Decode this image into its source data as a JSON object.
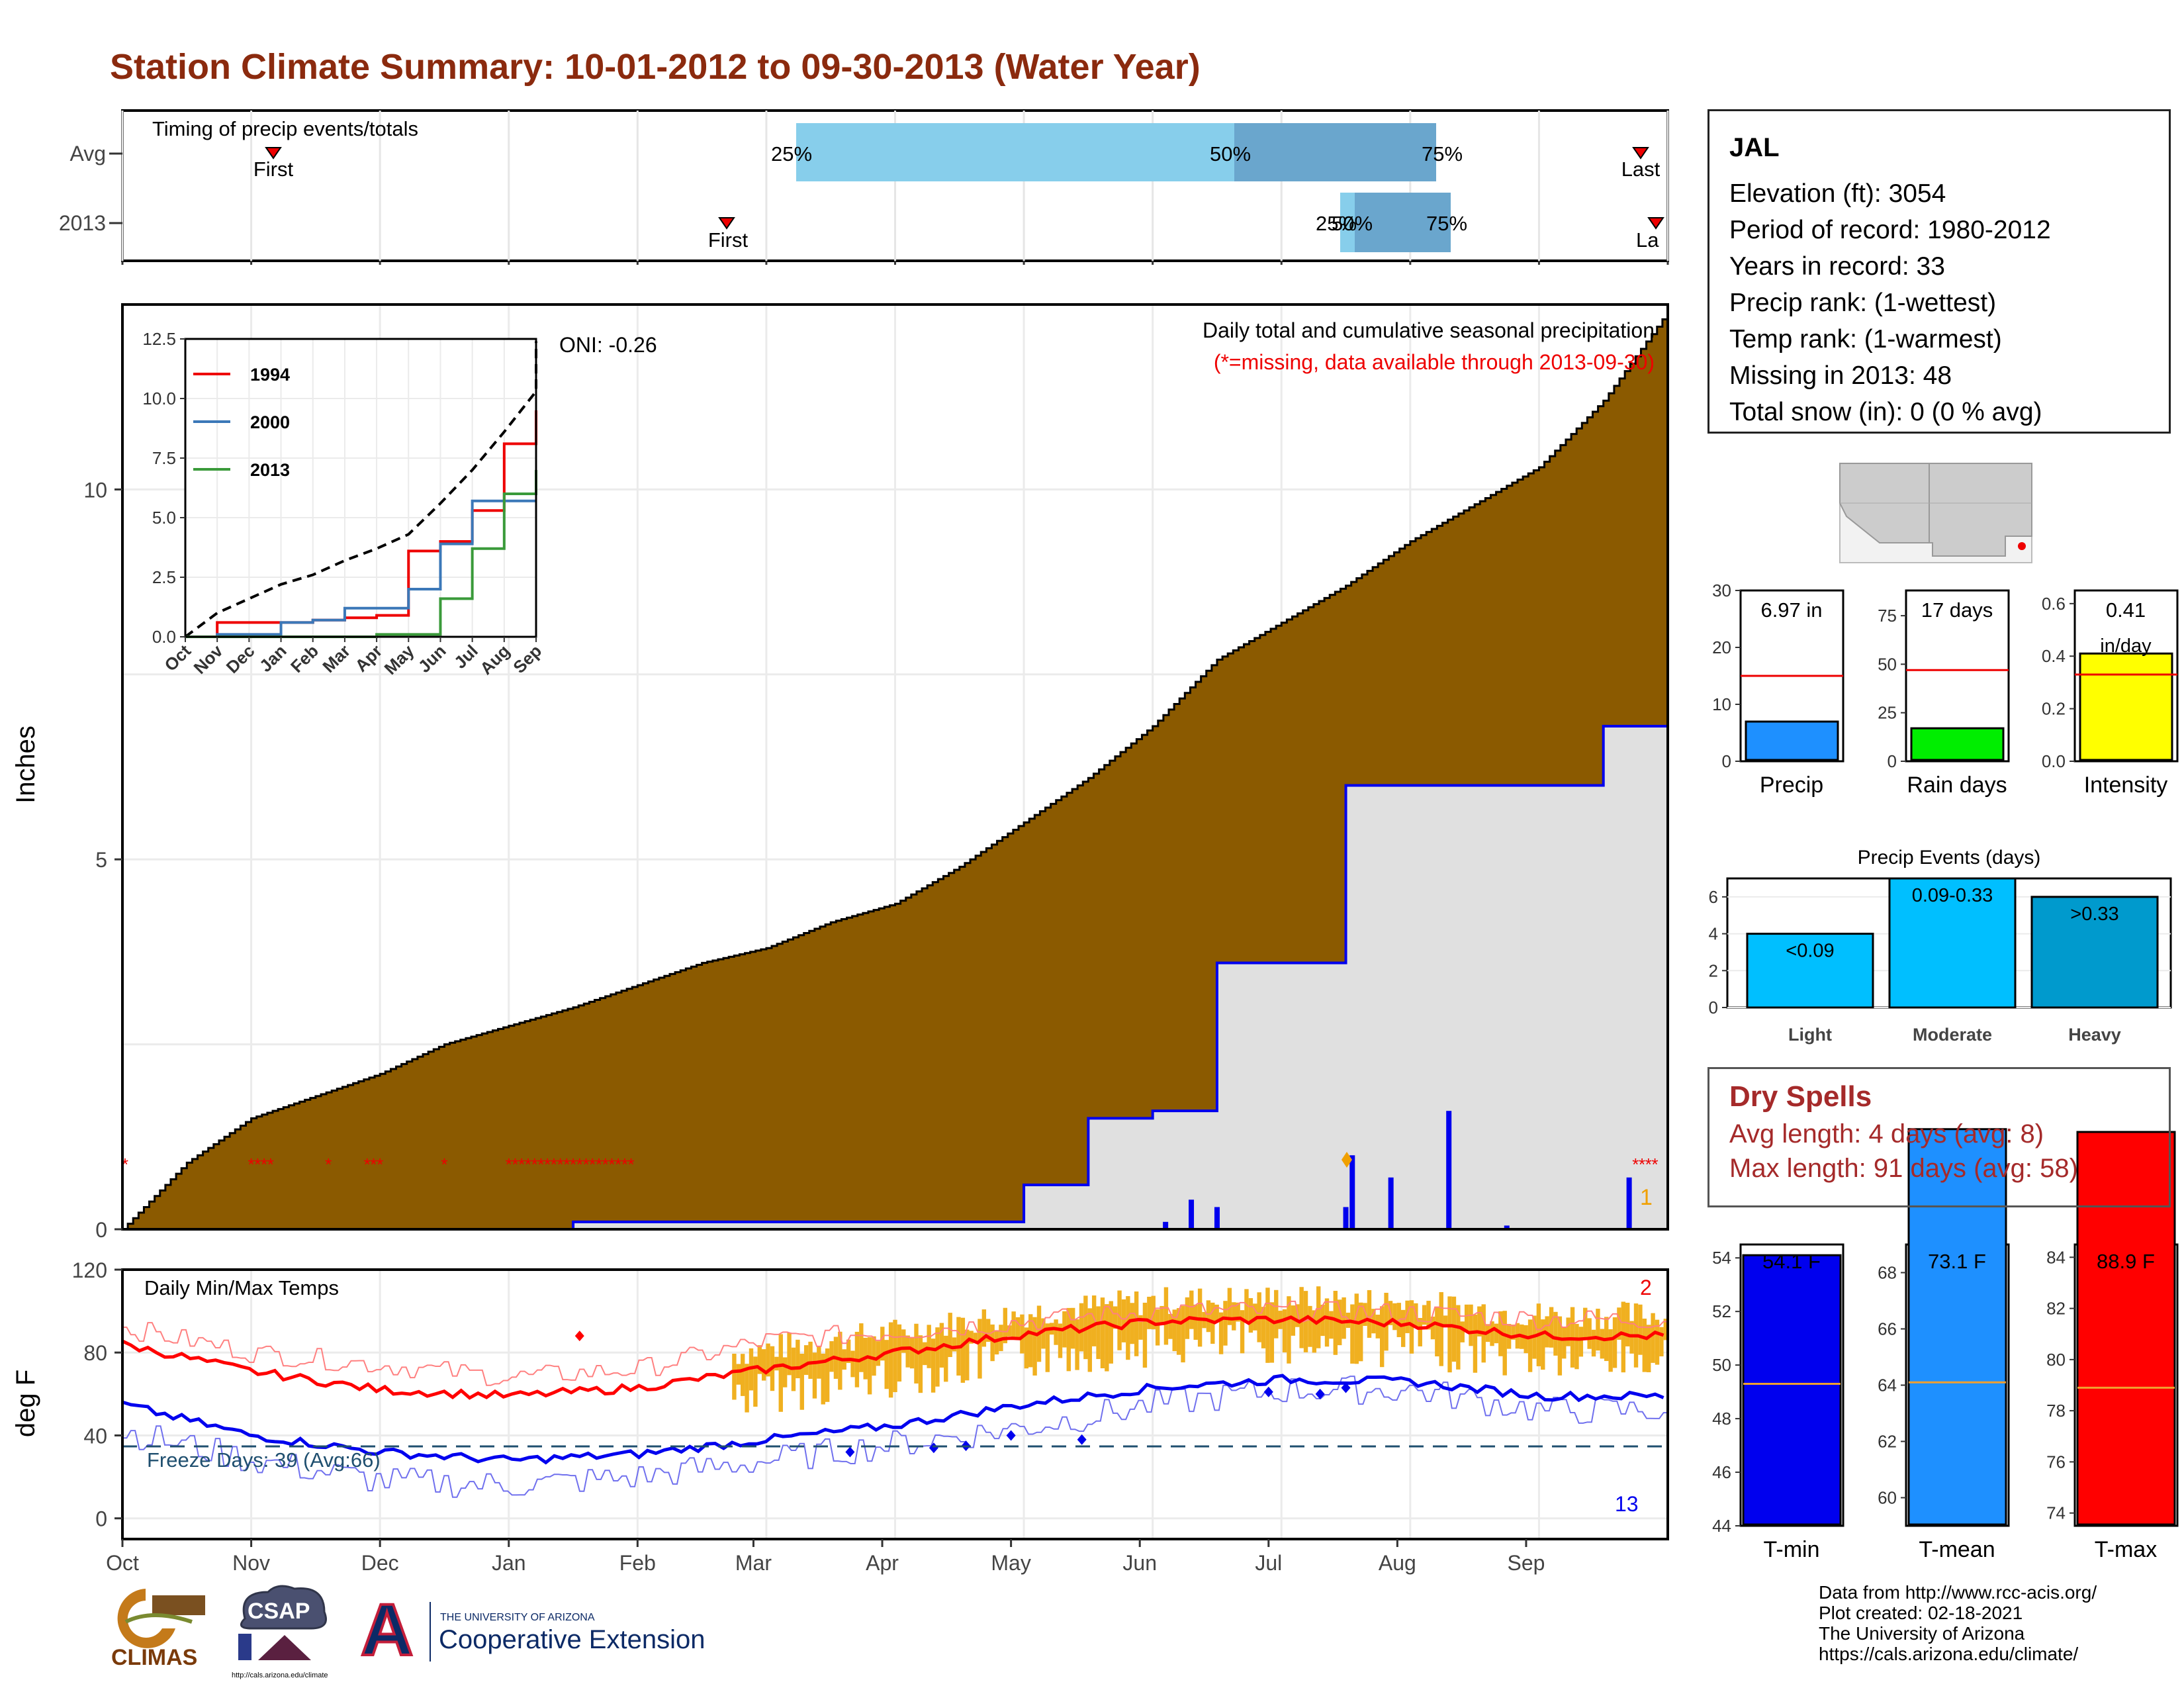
{
  "title": "Station Climate Summary: 10-01-2012 to 09-30-2013 (Water Year)",
  "colors": {
    "title": "#8b2a0e",
    "cumulative_fill": "#8b5a00",
    "current_year_line": "#0000ee",
    "avg_red": "#ff0000",
    "tmin_blue": "#0000ee",
    "temp_anomaly": "#f0b020",
    "timing_light": "#87ceeb",
    "timing_dark": "#6aa6cd"
  },
  "timing": {
    "title": "Timing of precip events/totals",
    "rows": [
      "Avg",
      "2013"
    ],
    "avg": {
      "p25": "25%",
      "p50": "50%",
      "p75": "75%",
      "first": "First",
      "last": "Last"
    },
    "year": {
      "p25": "25%",
      "p50": "50%",
      "p75": "75%",
      "first": "First",
      "last": "La"
    }
  },
  "precip_panel": {
    "ylabel": "Inches",
    "y_ticks": [
      "0",
      "5",
      "10"
    ],
    "oni": "ONI: -0.26",
    "heading": "Daily total and cumulative seasonal precipitation",
    "missing_note": "(*=missing, data available through 2013-09-30)",
    "corner_count": "1"
  },
  "inset": {
    "y_ticks": [
      "0.0",
      "2.5",
      "5.0",
      "7.5",
      "10.0",
      "12.5"
    ],
    "x_ticks": [
      "Oct",
      "Nov",
      "Dec",
      "Jan",
      "Feb",
      "Mar",
      "Apr",
      "May",
      "Jun",
      "Jul",
      "Aug",
      "Sep"
    ],
    "legend": [
      "1994",
      "2000",
      "2013"
    ]
  },
  "temp_panel": {
    "ylabel": "deg F",
    "title": "Daily Min/Max Temps",
    "y_ticks": [
      "0",
      "40",
      "80",
      "120"
    ],
    "freeze_label": "Freeze Days: 39 (Avg:66)",
    "count_top": "2",
    "count_bottom": "13"
  },
  "months": [
    "Oct",
    "Nov",
    "Dec",
    "Jan",
    "Feb",
    "Mar",
    "Apr",
    "May",
    "Jun",
    "Jul",
    "Aug",
    "Sep"
  ],
  "station_info": {
    "name": "JAL",
    "lines": [
      "Elevation (ft): 3054",
      "Period of record: 1980-2012",
      "Years in record: 33",
      "Precip rank:  (1-wettest)",
      "Temp rank:  (1-warmest)",
      "Missing in 2013: 48",
      "Total snow (in): 0 (0 % avg)"
    ]
  },
  "summary_bars": {
    "precip": {
      "label": "Precip",
      "value_text": "6.97 in",
      "ticks": [
        "0",
        "10",
        "20",
        "30"
      ]
    },
    "rain_days": {
      "label": "Rain days",
      "value_text": "17 days",
      "ticks": [
        "0",
        "25",
        "50",
        "75"
      ]
    },
    "intensity": {
      "label": "Intensity",
      "value_text": "0.41",
      "value_unit": "in/day",
      "ticks": [
        "0.0",
        "0.2",
        "0.4",
        "0.6"
      ]
    }
  },
  "precip_events": {
    "title": "Precip Events (days)",
    "ticks": [
      "0",
      "2",
      "4",
      "6"
    ],
    "categories": [
      "Light",
      "Moderate",
      "Heavy"
    ],
    "bar_labels": [
      "<0.09",
      "0.09-0.33",
      ">0.33"
    ]
  },
  "dry_spells": {
    "title": "Dry Spells",
    "avg_length": "Avg length: 4 days (avg: 8)",
    "max_length": "Max length: 91 days (avg: 58)"
  },
  "temp_summary": {
    "tmin": {
      "label": "T-min",
      "value_text": "54.1 F",
      "ticks": [
        "44",
        "46",
        "48",
        "50",
        "52",
        "54"
      ]
    },
    "tmean": {
      "label": "T-mean",
      "value_text": "73.1 F",
      "ticks": [
        "60",
        "62",
        "64",
        "66",
        "68"
      ]
    },
    "tmax": {
      "label": "T-max",
      "value_text": "88.9 F",
      "ticks": [
        "74",
        "76",
        "78",
        "80",
        "82",
        "84"
      ]
    }
  },
  "credits": [
    "Data from http://www.rcc-acis.org/",
    "Plot created: 02-18-2021",
    "The University of Arizona",
    "https://cals.arizona.edu/climate/"
  ],
  "logos": {
    "climas": "CLIMAS",
    "csap": "CSAP",
    "csap_url": "http://cals.arizona.edu/climate",
    "univ_small": "THE UNIVERSITY OF ARIZONA",
    "coop": "Cooperative Extension",
    "a": "A"
  },
  "chart_data": [
    {
      "type": "bar",
      "title": "Timing of precip events/totals",
      "categories": [
        "Avg",
        "2013"
      ],
      "series": [
        {
          "name": "First",
          "values": [
            0.1,
            0.41
          ]
        },
        {
          "name": "25%",
          "values": [
            0.45,
            0.82
          ]
        },
        {
          "name": "50%",
          "values": [
            0.75,
            0.83
          ]
        },
        {
          "name": "75%",
          "values": [
            0.89,
            0.9
          ]
        },
        {
          "name": "Last",
          "values": [
            1.0,
            1.02
          ]
        }
      ],
      "xlim": [
        0,
        1
      ]
    },
    {
      "type": "area",
      "title": "Daily total and cumulative seasonal precipitation",
      "ylabel": "Inches",
      "ylim": [
        0,
        12.5
      ],
      "x": [
        0,
        0.5,
        1,
        1.5,
        2,
        2.5,
        3,
        3.5,
        4,
        4.5,
        5,
        5.5,
        6,
        6.5,
        7,
        7.5,
        8,
        8.5,
        9,
        9.5,
        10,
        10.5,
        11,
        11.5,
        12
      ],
      "series": [
        {
          "name": "Avg",
          "values": [
            0,
            0.9,
            1.5,
            1.8,
            2.1,
            2.5,
            2.75,
            3.0,
            3.3,
            3.6,
            3.8,
            4.15,
            4.4,
            4.9,
            5.5,
            6.1,
            6.8,
            7.7,
            8.2,
            8.7,
            9.3,
            9.8,
            10.3,
            11.2,
            12.4
          ]
        },
        {
          "name": "2013",
          "values": [
            0,
            0,
            0,
            0,
            0,
            0,
            0,
            0.1,
            0.1,
            0.1,
            0.1,
            0.1,
            0.1,
            0.1,
            0.6,
            1.5,
            1.6,
            3.6,
            3.6,
            6.0,
            6.0,
            6.0,
            6.0,
            6.8,
            7.0
          ]
        }
      ],
      "bars": {
        "x": [
          8.1,
          8.3,
          8.5,
          9.5,
          9.55,
          9.85,
          10.3,
          10.75,
          11.7
        ],
        "values": [
          0.1,
          0.4,
          0.3,
          0.3,
          1.0,
          0.7,
          1.6,
          0.05,
          0.7
        ]
      }
    },
    {
      "type": "line",
      "title": "Cumulative precipitation comparison years",
      "categories": [
        "Oct",
        "Nov",
        "Dec",
        "Jan",
        "Feb",
        "Mar",
        "Apr",
        "May",
        "Jun",
        "Jul",
        "Aug",
        "Sep"
      ],
      "ylim": [
        0,
        12.5
      ],
      "series": [
        {
          "name": "Avg",
          "values": [
            0,
            1.0,
            1.6,
            2.2,
            2.6,
            3.2,
            3.7,
            4.3,
            5.6,
            7.0,
            8.6,
            10.3
          ]
        },
        {
          "name": "1994",
          "values": [
            0,
            0.6,
            0.6,
            0.6,
            0.7,
            0.8,
            0.9,
            3.6,
            4.0,
            5.3,
            8.1,
            9.5
          ]
        },
        {
          "name": "2000",
          "values": [
            0,
            0.1,
            0.1,
            0.6,
            0.7,
            1.2,
            1.2,
            2.0,
            3.9,
            5.7,
            5.7,
            5.7
          ]
        },
        {
          "name": "2013",
          "values": [
            0,
            0,
            0,
            0,
            0,
            0,
            0.1,
            0.1,
            1.6,
            3.7,
            6.0,
            7.0
          ]
        }
      ],
      "legend": "top-left"
    },
    {
      "type": "line",
      "title": "Daily Min/Max Temps",
      "ylabel": "deg F",
      "ylim": [
        -10,
        120
      ],
      "categories": [
        "Oct",
        "Nov",
        "Dec",
        "Jan",
        "Feb",
        "Mar",
        "Apr",
        "May",
        "Jun",
        "Jul",
        "Aug",
        "Sep"
      ],
      "series": [
        {
          "name": "Avg max",
          "values": [
            84,
            71,
            62,
            59,
            63,
            72,
            80,
            89,
            95,
            96,
            94,
            88
          ]
        },
        {
          "name": "Avg min",
          "values": [
            55,
            40,
            32,
            28,
            31,
            38,
            45,
            55,
            63,
            67,
            66,
            59
          ]
        },
        {
          "name": "2013 max",
          "values": [
            92,
            80,
            74,
            68,
            72,
            86,
            90,
            95,
            100,
            100,
            99,
            96
          ]
        },
        {
          "name": "2013 min",
          "values": [
            42,
            28,
            18,
            16,
            20,
            28,
            36,
            44,
            55,
            62,
            62,
            52
          ]
        }
      ],
      "freeze_line": 32
    },
    {
      "type": "bar",
      "title": "Precip / Rain days / Intensity",
      "categories": [
        "Precip",
        "Rain days",
        "Intensity"
      ],
      "values": [
        6.97,
        17,
        0.41
      ],
      "averages": [
        15,
        47,
        0.33
      ]
    },
    {
      "type": "bar",
      "title": "Precip Events (days)",
      "categories": [
        "Light",
        "Moderate",
        "Heavy"
      ],
      "values": [
        4,
        7,
        6
      ],
      "ylim": [
        0,
        7
      ]
    },
    {
      "type": "bar",
      "title": "Temperature summary",
      "categories": [
        "T-min",
        "T-mean",
        "T-max"
      ],
      "values": [
        54.1,
        73.1,
        88.9
      ],
      "averages": [
        49.3,
        64.1,
        78.9
      ],
      "ylims": [
        [
          44,
          54.5
        ],
        [
          59,
          69
        ],
        [
          73.5,
          84.5
        ]
      ]
    }
  ]
}
